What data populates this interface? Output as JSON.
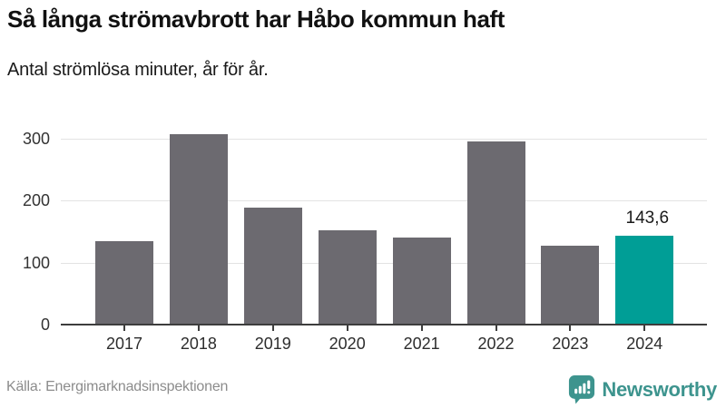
{
  "header": {
    "title": "Så långa strömavbrott har Håbo kommun haft",
    "subtitle": "Antal strömlösa minuter, år för år."
  },
  "chart_data": {
    "type": "bar",
    "title": "Så långa strömavbrott har Håbo kommun haft",
    "subtitle": "Antal strömlösa minuter, år för år.",
    "categories": [
      "2017",
      "2018",
      "2019",
      "2020",
      "2021",
      "2022",
      "2023",
      "2024"
    ],
    "values": [
      134,
      308,
      189,
      152,
      141,
      295,
      128,
      143.6
    ],
    "bar_labels": [
      "",
      "",
      "",
      "",
      "",
      "",
      "",
      "143,6"
    ],
    "highlight_index": 7,
    "yticks": [
      0,
      100,
      200,
      300
    ],
    "ylim": [
      0,
      320
    ],
    "grid": true,
    "legend": "none",
    "xlabel": "",
    "ylabel": "Antal strömlösa minuter",
    "colors": {
      "bar": "#6c6a70",
      "highlight": "#009e96",
      "gridline": "#e3e3e3",
      "axis": "#3d3d3d",
      "tick_label": "#2d2d2d",
      "bar_label": "#1a1a1a"
    }
  },
  "footer": {
    "source": "Källa: Energimarknadsinspektionen",
    "brand": "Newsworthy",
    "brand_color": "#3d948e"
  }
}
